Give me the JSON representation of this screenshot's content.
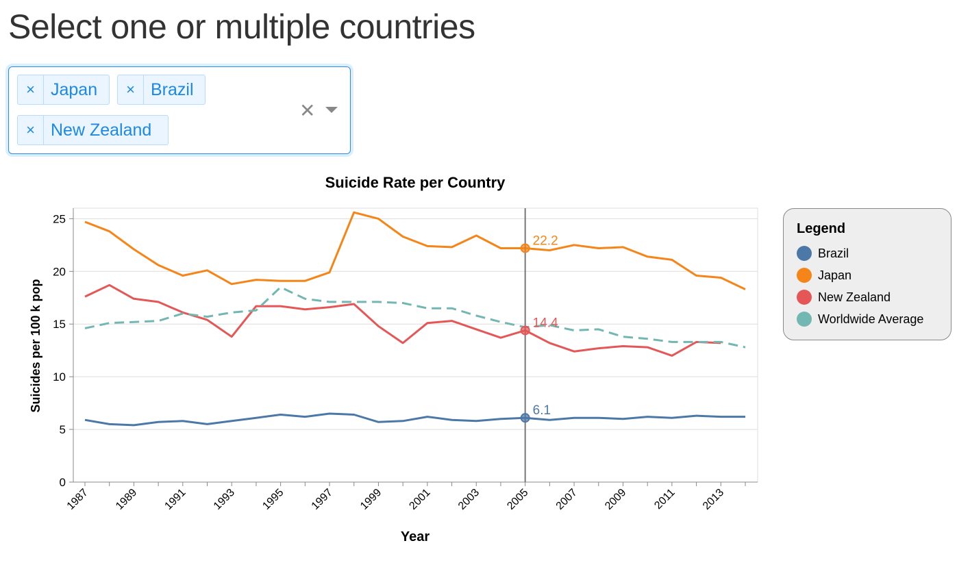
{
  "heading": "Select one or multiple countries",
  "selector": {
    "selected": [
      {
        "label": "Japan",
        "remove_glyph": "×"
      },
      {
        "label": "Brazil",
        "remove_glyph": "×"
      },
      {
        "label": "New Zealand",
        "remove_glyph": "×"
      }
    ],
    "clear_glyph": "✕",
    "accent_color": "#1e88e5"
  },
  "chart_data": {
    "type": "line",
    "title": "Suicide Rate per Country",
    "xlabel": "Year",
    "ylabel": "Suicides per 100 k pop",
    "x": [
      1987,
      1988,
      1989,
      1990,
      1991,
      1992,
      1993,
      1994,
      1995,
      1996,
      1997,
      1998,
      1999,
      2000,
      2001,
      2002,
      2003,
      2004,
      2005,
      2006,
      2007,
      2008,
      2009,
      2010,
      2011,
      2012,
      2013,
      2014
    ],
    "x_tick_labels": [
      "1987",
      "1989",
      "1991",
      "1993",
      "1995",
      "1997",
      "1999",
      "2001",
      "2003",
      "2005",
      "2007",
      "2009",
      "2011",
      "2013"
    ],
    "y_ticks": [
      0,
      5,
      10,
      15,
      20,
      25
    ],
    "xlim": [
      1987,
      2014
    ],
    "ylim": [
      0,
      26
    ],
    "grid": true,
    "series": [
      {
        "name": "Brazil",
        "color": "#4c78a8",
        "dashed": false,
        "values": [
          5.9,
          5.5,
          5.4,
          5.7,
          5.8,
          5.5,
          5.8,
          6.1,
          6.4,
          6.2,
          6.5,
          6.4,
          5.7,
          5.8,
          6.2,
          5.9,
          5.8,
          6.0,
          6.1,
          5.9,
          6.1,
          6.1,
          6.0,
          6.2,
          6.1,
          6.3,
          6.2,
          6.2
        ]
      },
      {
        "name": "Japan",
        "color": "#f58518",
        "dashed": false,
        "values": [
          24.7,
          23.8,
          22.1,
          20.6,
          19.6,
          20.1,
          18.8,
          19.2,
          19.1,
          19.1,
          19.9,
          25.6,
          25.0,
          23.3,
          22.4,
          22.3,
          23.4,
          22.2,
          22.2,
          22.0,
          22.5,
          22.2,
          22.3,
          21.4,
          21.1,
          19.6,
          19.4,
          18.3
        ]
      },
      {
        "name": "New Zealand",
        "color": "#e45756",
        "dashed": false,
        "values": [
          17.6,
          18.7,
          17.4,
          17.1,
          16.1,
          15.4,
          13.8,
          16.7,
          16.7,
          16.4,
          16.6,
          16.9,
          14.8,
          13.2,
          15.1,
          15.3,
          14.5,
          13.7,
          14.4,
          13.2,
          12.4,
          12.7,
          12.9,
          12.8,
          12.0,
          13.3,
          13.2,
          null
        ]
      },
      {
        "name": "Worldwide Average",
        "color": "#72b7b2",
        "dashed": true,
        "values": [
          14.6,
          15.1,
          15.2,
          15.3,
          16.0,
          15.7,
          16.1,
          16.3,
          18.5,
          17.4,
          17.1,
          17.1,
          17.1,
          17.0,
          16.5,
          16.5,
          15.8,
          15.2,
          14.7,
          14.9,
          14.4,
          14.5,
          13.8,
          13.6,
          13.3,
          13.3,
          13.3,
          12.8
        ]
      }
    ],
    "hover": {
      "year": 2005,
      "labels": [
        {
          "series": "Japan",
          "text": "22.2",
          "value": 22.2,
          "color": "#f58518"
        },
        {
          "series": "New Zealand",
          "text": "14.4",
          "value": 14.4,
          "color": "#e45756"
        },
        {
          "series": "Brazil",
          "text": "6.1",
          "value": 6.1,
          "color": "#4c78a8"
        }
      ]
    },
    "legend": {
      "title": "Legend",
      "position": "right",
      "items": [
        {
          "label": "Brazil",
          "color": "#4c78a8"
        },
        {
          "label": "Japan",
          "color": "#f58518"
        },
        {
          "label": "New Zealand",
          "color": "#e45756"
        },
        {
          "label": "Worldwide Average",
          "color": "#72b7b2"
        }
      ]
    }
  }
}
